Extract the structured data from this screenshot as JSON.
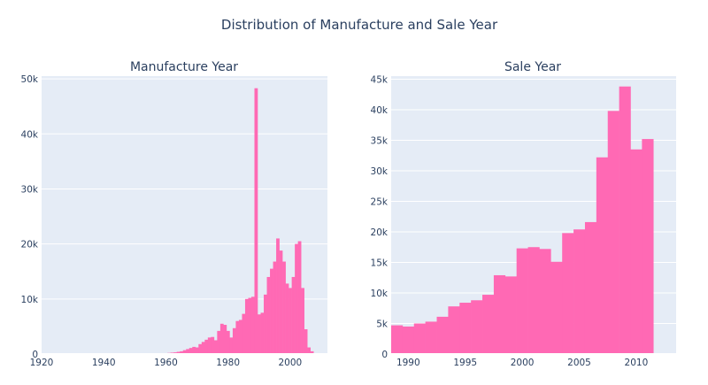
{
  "title": "Distribution of Manufacture and Sale Year",
  "colors": {
    "bar": "#ff69b4",
    "plot_bg": "#e5ecf6",
    "grid": "#ffffff",
    "text": "#2a3f5f"
  },
  "chart_data": [
    {
      "type": "bar",
      "title": "Manufacture Year",
      "xlabel": "",
      "ylabel": "",
      "xlim": [
        1920,
        2012
      ],
      "ylim": [
        0,
        50500
      ],
      "xticks": [
        1920,
        1940,
        1960,
        1980,
        2000
      ],
      "xtick_labels": [
        "1920",
        "1940",
        "1960",
        "1980",
        "2000"
      ],
      "yticks": [
        0,
        10000,
        20000,
        30000,
        40000,
        50000
      ],
      "ytick_labels": [
        "0",
        "10k",
        "20k",
        "30k",
        "40k",
        "50k"
      ],
      "bin_width": 1,
      "x": [
        1955,
        1956,
        1957,
        1958,
        1959,
        1960,
        1961,
        1962,
        1963,
        1964,
        1965,
        1966,
        1967,
        1968,
        1969,
        1970,
        1971,
        1972,
        1973,
        1974,
        1975,
        1976,
        1977,
        1978,
        1979,
        1980,
        1981,
        1982,
        1983,
        1984,
        1985,
        1986,
        1987,
        1988,
        1989,
        1990,
        1991,
        1992,
        1993,
        1994,
        1995,
        1996,
        1997,
        1998,
        1999,
        2000,
        2001,
        2002,
        2003,
        2004,
        2005,
        2006,
        2007,
        2008
      ],
      "values": [
        20,
        30,
        40,
        60,
        80,
        150,
        200,
        250,
        300,
        400,
        500,
        700,
        900,
        1100,
        1300,
        1200,
        1800,
        2200,
        2600,
        3000,
        3100,
        2500,
        4200,
        5500,
        5300,
        4200,
        3000,
        4700,
        6000,
        6200,
        7300,
        10000,
        10200,
        10400,
        48300,
        7200,
        7500,
        10800,
        14000,
        15500,
        16800,
        21000,
        18800,
        16800,
        12800,
        12000,
        14000,
        20000,
        20500,
        12000,
        4500,
        1200,
        500,
        100
      ]
    },
    {
      "type": "bar",
      "title": "Sale Year",
      "xlabel": "",
      "ylabel": "",
      "xlim": [
        1988.5,
        2013.5
      ],
      "ylim": [
        0,
        45500
      ],
      "xticks": [
        1990,
        1995,
        2000,
        2005,
        2010
      ],
      "xtick_labels": [
        "1990",
        "1995",
        "2000",
        "2005",
        "2010"
      ],
      "yticks": [
        0,
        5000,
        10000,
        15000,
        20000,
        25000,
        30000,
        35000,
        40000,
        45000
      ],
      "ytick_labels": [
        "0",
        "5k",
        "10k",
        "15k",
        "20k",
        "25k",
        "30k",
        "35k",
        "40k",
        "45k"
      ],
      "bin_width": 1,
      "x": [
        1989,
        1990,
        1991,
        1992,
        1993,
        1994,
        1995,
        1996,
        1997,
        1998,
        1999,
        2000,
        2001,
        2002,
        2003,
        2004,
        2005,
        2006,
        2007,
        2008,
        2009,
        2010,
        2011
      ],
      "values": [
        4700,
        4500,
        5000,
        5300,
        6100,
        7800,
        8400,
        8800,
        9700,
        12900,
        12700,
        17300,
        17500,
        17200,
        15100,
        19800,
        20400,
        21600,
        32200,
        39800,
        43800,
        33500,
        35200
      ]
    }
  ]
}
